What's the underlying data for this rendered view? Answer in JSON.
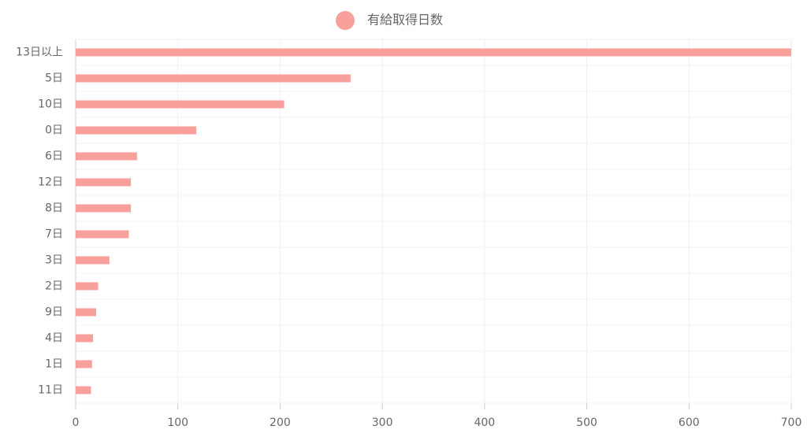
{
  "chart_data": {
    "type": "hbar",
    "series": [
      {
        "name": "有給取得日数",
        "color": "#f8a09c",
        "values": [
          700,
          269,
          204,
          118,
          60,
          54,
          54,
          52,
          33,
          22,
          20,
          17,
          16,
          15
        ]
      }
    ],
    "categories": [
      "13日以上",
      "5日",
      "10日",
      "0日",
      "6日",
      "12日",
      "8日",
      "7日",
      "3日",
      "2日",
      "9日",
      "4日",
      "1日",
      "11日"
    ],
    "xlim": [
      0,
      700
    ],
    "xticks": [
      0,
      100,
      200,
      300,
      400,
      500,
      600,
      700
    ],
    "grid": true,
    "legend": "top"
  }
}
